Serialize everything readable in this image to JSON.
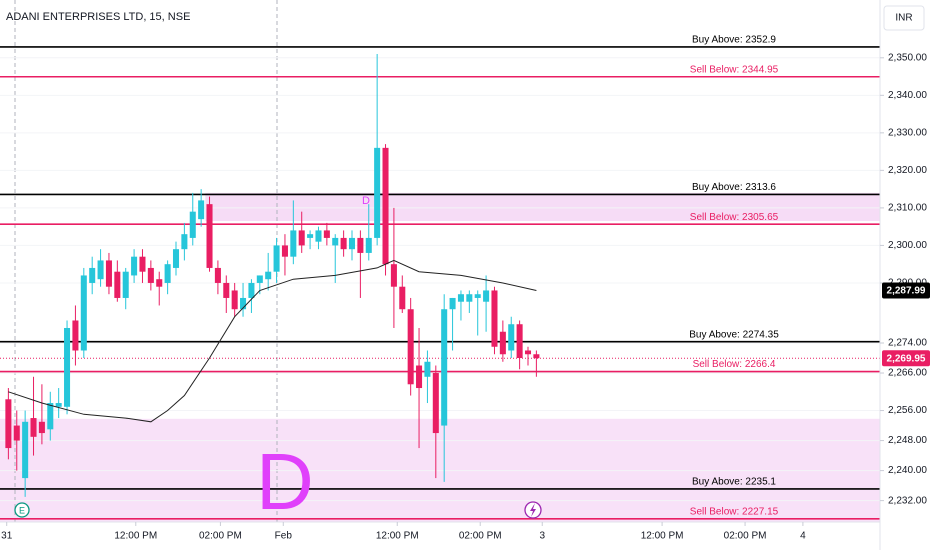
{
  "chart_data": {
    "type": "candlestick",
    "title": "ADANI ENTERPRISES LTD, 15, NSE",
    "currency": "INR",
    "event_marker": "E",
    "annotations": [
      "D",
      "D"
    ],
    "up_color": "#26c6da",
    "down_color": "#e91e63",
    "xlim": [
      0,
      105
    ],
    "xticks": [
      {
        "value": 0.8,
        "label": "31"
      },
      {
        "value": 16.2,
        "label": "12:00 PM"
      },
      {
        "value": 26.3,
        "label": "02:00 PM"
      },
      {
        "value": 33.8,
        "label": "Feb"
      },
      {
        "value": 47.4,
        "label": "12:00 PM"
      },
      {
        "value": 57.3,
        "label": "02:00 PM"
      },
      {
        "value": 64.7,
        "label": "3"
      },
      {
        "value": 79,
        "label": "12:00 PM"
      },
      {
        "value": 88.9,
        "label": "02:00 PM"
      },
      {
        "value": 95.8,
        "label": "4"
      }
    ],
    "ylim": [
      2226.3,
      2365.4
    ],
    "yticks": [
      {
        "value": 2232,
        "label": "2,232.00"
      },
      {
        "value": 2240,
        "label": "2,240.00"
      },
      {
        "value": 2248,
        "label": "2,248.00"
      },
      {
        "value": 2256,
        "label": "2,256.00"
      },
      {
        "value": 2266,
        "label": "2,266.00"
      },
      {
        "value": 2274,
        "label": "2,274.00"
      },
      {
        "value": 2290,
        "label": "2,290.00"
      },
      {
        "value": 2300,
        "label": "2,300.00"
      },
      {
        "value": 2310,
        "label": "2,310.00"
      },
      {
        "value": 2320,
        "label": "2,320.00"
      },
      {
        "value": 2330,
        "label": "2,330.00"
      },
      {
        "value": 2340,
        "label": "2,340.00"
      },
      {
        "value": 2350,
        "label": "2,350.00"
      }
    ],
    "zones": [
      {
        "x": [
          0,
          105
        ],
        "y": [
          2226.3,
          2253.8
        ],
        "color": "#f8e1f8"
      },
      {
        "x": [
          24.5,
          105
        ],
        "y": [
          2306.5,
          2314
        ],
        "color": "#f6dcf6"
      }
    ],
    "levels": [
      {
        "label": "Buy Above: 2352.9",
        "value": 2352.9,
        "color": "#000000"
      },
      {
        "label": "Sell Below: 2344.95",
        "value": 2344.95,
        "color": "#e91e63"
      },
      {
        "label": "Buy Above: 2313.6",
        "value": 2313.6,
        "color": "#000000"
      },
      {
        "label": "Sell Below: 2305.65",
        "value": 2305.65,
        "color": "#e91e63"
      },
      {
        "label": "Buy Above: 2274.35",
        "value": 2274.35,
        "color": "#000000"
      },
      {
        "label": "Sell Below: 2266.4",
        "value": 2266.4,
        "color": "#e91e63"
      },
      {
        "label": "Buy Above: 2235.1",
        "value": 2235.1,
        "color": "#000000"
      },
      {
        "label": "Sell Below: 2227.15",
        "value": 2227.15,
        "color": "#e91e63"
      }
    ],
    "moving_average": {
      "color": "#222222",
      "x": [
        1,
        5,
        10,
        15,
        18,
        20,
        22,
        25,
        28,
        31,
        35,
        40,
        45,
        47,
        50,
        55,
        60,
        64
      ],
      "values": [
        2261,
        2258,
        2255,
        2254,
        2253,
        2256,
        2260,
        2270,
        2281,
        2288,
        2291,
        2292,
        2294,
        2296,
        2293,
        2292,
        2290,
        2287.99
      ]
    },
    "price_labels": [
      {
        "value": 2287.99,
        "label": "2,287.99",
        "color": "#000000"
      },
      {
        "value": 2269.95,
        "label": "2,269.95",
        "color": "#e91e63"
      }
    ],
    "candles": [
      {
        "x": 1,
        "open": 2259,
        "high": 2262,
        "low": 2243,
        "close": 2246
      },
      {
        "x": 2,
        "open": 2252,
        "high": 2256,
        "low": 2240,
        "close": 2248
      },
      {
        "x": 3,
        "open": 2238,
        "high": 2256,
        "low": 2233,
        "close": 2253
      },
      {
        "x": 4,
        "open": 2254,
        "high": 2265,
        "low": 2244,
        "close": 2249
      },
      {
        "x": 5,
        "open": 2253,
        "high": 2263,
        "low": 2247,
        "close": 2250
      },
      {
        "x": 6,
        "open": 2251,
        "high": 2261,
        "low": 2248,
        "close": 2258
      },
      {
        "x": 7,
        "open": 2257,
        "high": 2262,
        "low": 2254,
        "close": 2258
      },
      {
        "x": 8,
        "open": 2257,
        "high": 2280,
        "low": 2255,
        "close": 2278
      },
      {
        "x": 9,
        "open": 2280,
        "high": 2284,
        "low": 2268,
        "close": 2272
      },
      {
        "x": 10,
        "open": 2272,
        "high": 2294,
        "low": 2270,
        "close": 2292
      },
      {
        "x": 11,
        "open": 2290,
        "high": 2297,
        "low": 2287,
        "close": 2294
      },
      {
        "x": 12,
        "open": 2291,
        "high": 2299,
        "low": 2289,
        "close": 2296
      },
      {
        "x": 13,
        "open": 2296,
        "high": 2298,
        "low": 2287,
        "close": 2289
      },
      {
        "x": 14,
        "open": 2293,
        "high": 2296,
        "low": 2285,
        "close": 2286
      },
      {
        "x": 15,
        "open": 2286,
        "high": 2294,
        "low": 2283,
        "close": 2293
      },
      {
        "x": 16,
        "open": 2292,
        "high": 2299,
        "low": 2290,
        "close": 2297
      },
      {
        "x": 17,
        "open": 2297,
        "high": 2299,
        "low": 2290,
        "close": 2293
      },
      {
        "x": 18,
        "open": 2294,
        "high": 2296,
        "low": 2288,
        "close": 2290
      },
      {
        "x": 19,
        "open": 2291,
        "high": 2293,
        "low": 2284,
        "close": 2289
      },
      {
        "x": 20,
        "open": 2290,
        "high": 2296,
        "low": 2287,
        "close": 2295
      },
      {
        "x": 21,
        "open": 2294,
        "high": 2301,
        "low": 2292,
        "close": 2299
      },
      {
        "x": 22,
        "open": 2299,
        "high": 2306,
        "low": 2296,
        "close": 2303
      },
      {
        "x": 23,
        "open": 2302,
        "high": 2314,
        "low": 2300,
        "close": 2309
      },
      {
        "x": 24,
        "open": 2307,
        "high": 2315,
        "low": 2305,
        "close": 2312
      },
      {
        "x": 25,
        "open": 2311,
        "high": 2313,
        "low": 2293,
        "close": 2294
      },
      {
        "x": 26,
        "open": 2294,
        "high": 2296,
        "low": 2287,
        "close": 2290
      },
      {
        "x": 27,
        "open": 2290,
        "high": 2292,
        "low": 2282,
        "close": 2286
      },
      {
        "x": 28,
        "open": 2288,
        "high": 2290,
        "low": 2281,
        "close": 2283
      },
      {
        "x": 29,
        "open": 2283,
        "high": 2290,
        "low": 2281,
        "close": 2286
      },
      {
        "x": 30,
        "open": 2286,
        "high": 2291,
        "low": 2282,
        "close": 2290
      },
      {
        "x": 31,
        "open": 2290,
        "high": 2292,
        "low": 2287,
        "close": 2292
      },
      {
        "x": 32,
        "open": 2291,
        "high": 2298,
        "low": 2288,
        "close": 2293
      },
      {
        "x": 33,
        "open": 2293,
        "high": 2302,
        "low": 2290,
        "close": 2300
      },
      {
        "x": 34,
        "open": 2300,
        "high": 2303,
        "low": 2292,
        "close": 2297
      },
      {
        "x": 35,
        "open": 2297,
        "high": 2312,
        "low": 2295,
        "close": 2304
      },
      {
        "x": 36,
        "open": 2304,
        "high": 2309,
        "low": 2298,
        "close": 2300
      },
      {
        "x": 37,
        "open": 2302,
        "high": 2304,
        "low": 2299,
        "close": 2303
      },
      {
        "x": 38,
        "open": 2301,
        "high": 2305,
        "low": 2299,
        "close": 2304
      },
      {
        "x": 39,
        "open": 2304,
        "high": 2306,
        "low": 2300,
        "close": 2302
      },
      {
        "x": 40,
        "open": 2300,
        "high": 2303,
        "low": 2290,
        "close": 2302
      },
      {
        "x": 41,
        "open": 2302,
        "high": 2304,
        "low": 2297,
        "close": 2299
      },
      {
        "x": 42,
        "open": 2299,
        "high": 2304,
        "low": 2296,
        "close": 2302
      },
      {
        "x": 43,
        "open": 2302,
        "high": 2304,
        "low": 2286,
        "close": 2298
      },
      {
        "x": 44,
        "open": 2298,
        "high": 2311,
        "low": 2296,
        "close": 2302
      },
      {
        "x": 45,
        "open": 2302,
        "high": 2351,
        "low": 2300,
        "close": 2326
      },
      {
        "x": 46,
        "open": 2326,
        "high": 2327,
        "low": 2292,
        "close": 2295
      },
      {
        "x": 47,
        "open": 2295,
        "high": 2310,
        "low": 2278,
        "close": 2289
      },
      {
        "x": 48,
        "open": 2289,
        "high": 2292,
        "low": 2282,
        "close": 2283
      },
      {
        "x": 49,
        "open": 2283,
        "high": 2286,
        "low": 2260,
        "close": 2263
      },
      {
        "x": 50,
        "open": 2268,
        "high": 2278,
        "low": 2246,
        "close": 2262
      },
      {
        "x": 51,
        "open": 2265,
        "high": 2272,
        "low": 2258,
        "close": 2269
      },
      {
        "x": 52,
        "open": 2266,
        "high": 2268,
        "low": 2238,
        "close": 2250
      },
      {
        "x": 53,
        "open": 2252,
        "high": 2287,
        "low": 2237,
        "close": 2283
      },
      {
        "x": 54,
        "open": 2283,
        "high": 2286,
        "low": 2272,
        "close": 2286
      },
      {
        "x": 55,
        "open": 2285,
        "high": 2288,
        "low": 2280,
        "close": 2287
      },
      {
        "x": 56,
        "open": 2285,
        "high": 2288,
        "low": 2282,
        "close": 2287
      },
      {
        "x": 57,
        "open": 2286,
        "high": 2288,
        "low": 2276,
        "close": 2287
      },
      {
        "x": 58,
        "open": 2285,
        "high": 2292,
        "low": 2277,
        "close": 2288
      },
      {
        "x": 59,
        "open": 2288,
        "high": 2289,
        "low": 2271,
        "close": 2273
      },
      {
        "x": 60,
        "open": 2277,
        "high": 2280,
        "low": 2269,
        "close": 2271
      },
      {
        "x": 61,
        "open": 2272,
        "high": 2281,
        "low": 2270,
        "close": 2279
      },
      {
        "x": 62,
        "open": 2279,
        "high": 2280,
        "low": 2267,
        "close": 2270
      },
      {
        "x": 63,
        "open": 2272,
        "high": 2273,
        "low": 2268,
        "close": 2271
      },
      {
        "x": 64,
        "open": 2271,
        "high": 2272,
        "low": 2265,
        "close": 2269.95
      }
    ]
  }
}
